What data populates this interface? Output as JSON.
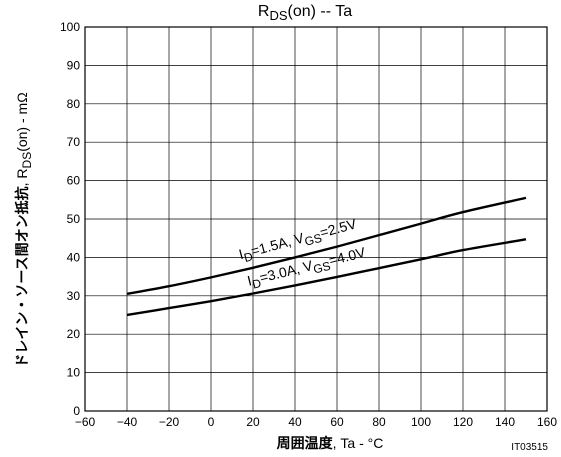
{
  "chart_data": {
    "type": "line",
    "title": "RDS(on)  --  Ta",
    "title_parts": {
      "main": "R",
      "sub": "DS",
      "rest": "(on)  --  Ta"
    },
    "xlabel": "周囲温度, Ta  -  °C",
    "xlabel_parts": {
      "bold": "周囲温度",
      "rest": ", Ta  -  °C"
    },
    "ylabel": "ドレイン・ソース間オン抵抗, RDS(on)  -  mΩ",
    "ylabel_parts": {
      "bold": "ドレイン・ソース間オン抵抗",
      "pre": ", R",
      "sub": "DS",
      "rest": "(on)  -  mΩ"
    },
    "xlim": [
      -60,
      160
    ],
    "ylim": [
      0,
      100
    ],
    "x_ticks": [
      -60,
      -40,
      -20,
      0,
      20,
      40,
      60,
      80,
      100,
      120,
      140,
      160
    ],
    "y_ticks": [
      0,
      10,
      20,
      30,
      40,
      50,
      60,
      70,
      80,
      90,
      100
    ],
    "x_tick_labels": [
      "−60",
      "−40",
      "−20",
      "0",
      "20",
      "40",
      "60",
      "80",
      "100",
      "120",
      "140",
      "160"
    ],
    "y_tick_labels": [
      "0",
      "10",
      "20",
      "30",
      "40",
      "50",
      "60",
      "70",
      "80",
      "90",
      "100"
    ],
    "grid": true,
    "series": [
      {
        "name": "ID=1.5A, VGS=2.5V",
        "label_parts": [
          "I",
          "D",
          "=1.5A, V",
          "GS",
          "=2.5V"
        ],
        "x": [
          -40,
          -20,
          0,
          20,
          40,
          60,
          80,
          100,
          120,
          150
        ],
        "y": [
          30.5,
          32.5,
          34.8,
          37.3,
          40,
          42.8,
          45.8,
          48.8,
          51.8,
          55.5
        ]
      },
      {
        "name": "ID=3.0A, VGS=4.0V",
        "label_parts": [
          "I",
          "D",
          "=3.0A, V",
          "GS",
          "=4.0V"
        ],
        "x": [
          -40,
          -20,
          0,
          20,
          40,
          60,
          80,
          100,
          120,
          150
        ],
        "y": [
          25,
          26.8,
          28.6,
          30.6,
          32.7,
          34.9,
          37.2,
          39.5,
          41.9,
          44.7
        ]
      }
    ],
    "code": "IT03515"
  }
}
